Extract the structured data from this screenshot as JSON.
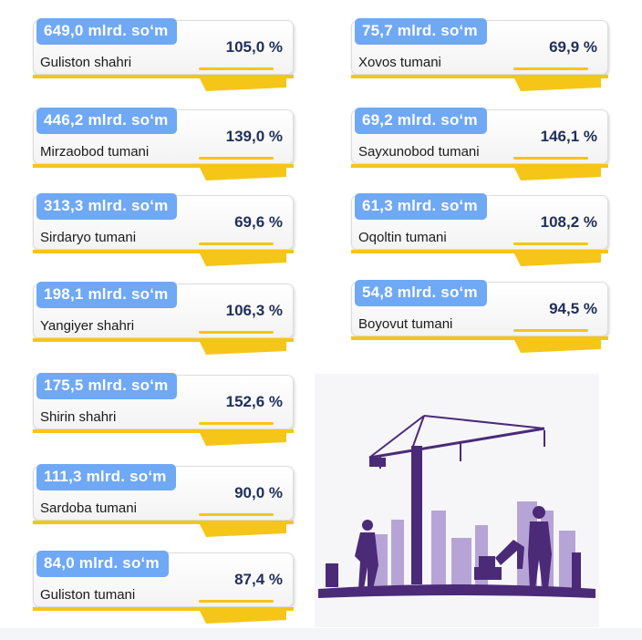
{
  "left_cards": [
    {
      "amount": "649,0 mlrd. so‘m",
      "place": "Guliston shahri",
      "percent": "105,0 %"
    },
    {
      "amount": "446,2 mlrd. so‘m",
      "place": "Mirzaobod tumani",
      "percent": "139,0 %"
    },
    {
      "amount": "313,3 mlrd. so‘m",
      "place": "Sirdaryo tumani",
      "percent": "69,6 %"
    },
    {
      "amount": "198,1 mlrd. so‘m",
      "place": "Yangiyer shahri",
      "percent": "106,3 %"
    },
    {
      "amount": "175,5 mlrd. so‘m",
      "place": "Shirin shahri",
      "percent": "152,6 %"
    },
    {
      "amount": "111,3 mlrd. so‘m",
      "place": "Sardoba tumani",
      "percent": "90,0 %"
    },
    {
      "amount": "84,0 mlrd. so‘m",
      "place": "Guliston tumani",
      "percent": "87,4 %"
    }
  ],
  "right_cards": [
    {
      "amount": "75,7 mlrd. so‘m",
      "place": "Xovos tumani",
      "percent": "69,9 %"
    },
    {
      "amount": "69,2 mlrd. so‘m",
      "place": "Sayxunobod tumani",
      "percent": "146,1 %"
    },
    {
      "amount": "61,3 mlrd. so‘m",
      "place": "Oqoltin tumani",
      "percent": "108,2 %"
    },
    {
      "amount": "54,8 mlrd. so‘m",
      "place": "Boyovut tumani",
      "percent": "94,5 %"
    }
  ],
  "colors": {
    "amount_badge": "#6fa8f5",
    "accent_yellow": "#f5c518",
    "percent_text": "#1f2f5c",
    "silhouette_dark": "#4b2a78",
    "silhouette_light": "#b7a4d6"
  },
  "illustration": "construction-site-crane-workers-excavator"
}
